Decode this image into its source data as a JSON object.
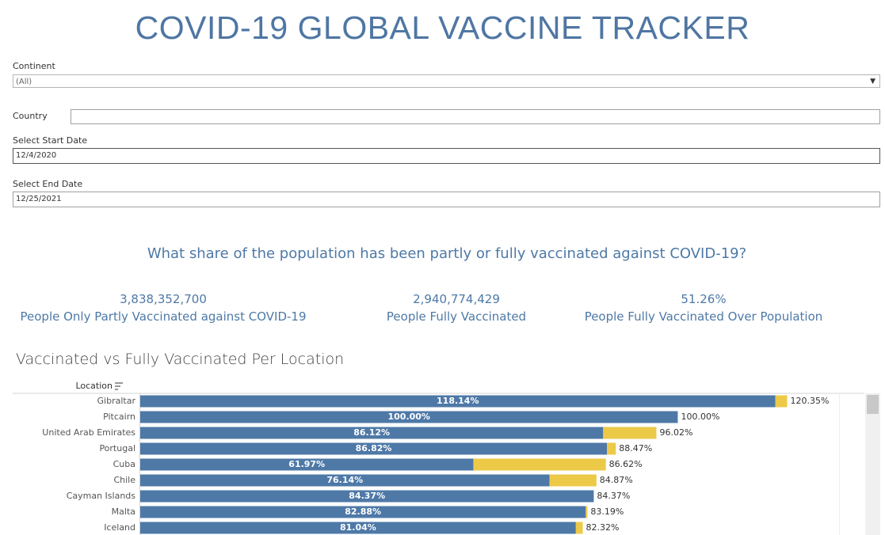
{
  "header": {
    "title": "COVID-19 GLOBAL VACCINE TRACKER"
  },
  "filters": [
    {
      "label": "Continent",
      "value": "(All)"
    },
    {
      "label": "Country"
    },
    {
      "label": "Select Start Date",
      "value": "12/4/2020"
    },
    {
      "label": "Select End Date",
      "value": "12/25/2021"
    }
  ],
  "question": "What share of the population has been partly or fully vaccinated against COVID-19?",
  "kpis": [
    {
      "value": "3,838,352,700",
      "label": "People Only Partly Vaccinated against COVID-19"
    },
    {
      "value": "2,940,774,429",
      "label": "People Fully Vaccinated"
    },
    {
      "value": "51.26%",
      "label": "People Fully Vaccinated Over Population"
    }
  ],
  "chart_data": {
    "type": "bar",
    "orientation": "horizontal",
    "title": "Vaccinated vs Fully Vaccinated Per Location",
    "axis_label": "Location",
    "categories": [
      "Gibraltar",
      "Pitcairn",
      "United Arab Emirates",
      "Portugal",
      "Cuba",
      "Chile",
      "Cayman Islands",
      "Malta",
      "Iceland"
    ],
    "series": [
      {
        "color": "#4e79a7",
        "values": [
          118.14,
          100.0,
          86.12,
          86.82,
          61.97,
          76.14,
          84.37,
          82.88,
          81.04
        ],
        "value_labels": [
          "118.14%",
          "100.00%",
          "86.12%",
          "86.82%",
          "61.97%",
          "76.14%",
          "84.37%",
          "82.88%",
          "81.04%"
        ]
      },
      {
        "color": "#edc948",
        "values": [
          2.21,
          0,
          9.9,
          1.65,
          24.65,
          8.73,
          0,
          0.31,
          1.28
        ]
      }
    ],
    "totals": [
      120.35,
      100.0,
      96.02,
      88.47,
      86.62,
      84.87,
      84.37,
      83.19,
      82.32
    ],
    "total_labels": [
      "120.35%",
      "100.00%",
      "96.02%",
      "88.47%",
      "86.62%",
      "84.87%",
      "84.37%",
      "83.19%",
      "82.32%"
    ],
    "xlim": [
      0,
      130
    ]
  }
}
